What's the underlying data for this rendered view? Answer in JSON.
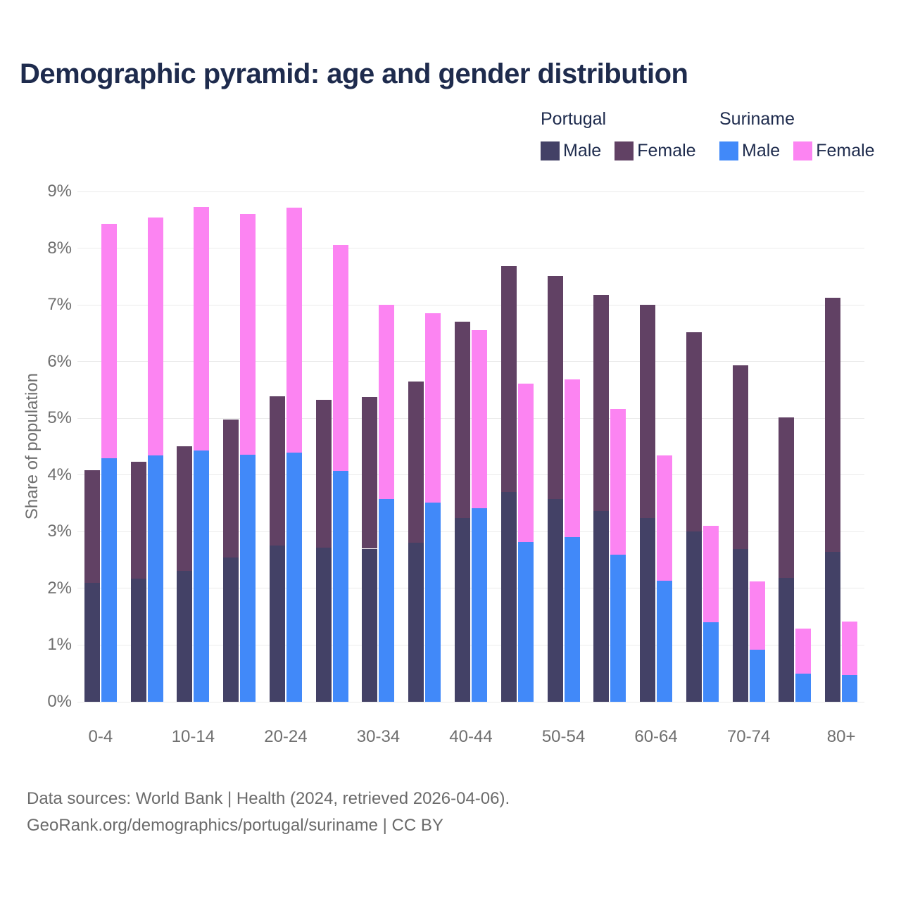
{
  "footer": {
    "line1": "Data sources: World Bank | Health (2024, retrieved 2026-04-06).",
    "line2": "GeoRank.org/demographics/portugal/suriname | CC BY"
  },
  "legend": {
    "groups": [
      {
        "header": "Portugal",
        "items": [
          {
            "label": "Male",
            "color": "#434166"
          },
          {
            "label": "Female",
            "color": "#614164"
          }
        ]
      },
      {
        "header": "Suriname",
        "items": [
          {
            "label": "Male",
            "color": "#4189f9"
          },
          {
            "label": "Female",
            "color": "#fc84f2"
          }
        ]
      }
    ]
  },
  "chart_data": {
    "type": "bar",
    "subtype": "paired-stacked-population-pyramid",
    "title": "Demographic pyramid: age and gender distribution",
    "xlabel": "",
    "ylabel": "Share of population",
    "ylim": [
      0,
      9
    ],
    "ytick_labels": [
      "0%",
      "1%",
      "2%",
      "3%",
      "4%",
      "5%",
      "6%",
      "7%",
      "8%",
      "9%"
    ],
    "grid": "horizontal",
    "legend_position": "top-right",
    "categories": [
      "0-4",
      "5-9",
      "10-14",
      "15-19",
      "20-24",
      "25-29",
      "30-34",
      "35-39",
      "40-44",
      "45-49",
      "50-54",
      "55-59",
      "60-64",
      "65-69",
      "70-74",
      "75-79",
      "80+"
    ],
    "xticks_shown": [
      "0-4",
      "10-14",
      "20-24",
      "30-34",
      "40-44",
      "50-54",
      "60-64",
      "70-74",
      "80+"
    ],
    "series": [
      {
        "name": "Portugal Male",
        "country": "Portugal",
        "gender": "Male",
        "stack": "portugal",
        "color": "#434166",
        "values": [
          2.1,
          2.17,
          2.31,
          2.54,
          2.75,
          2.72,
          2.7,
          2.8,
          3.24,
          3.7,
          3.57,
          3.37,
          3.24,
          3.0,
          2.69,
          2.18,
          2.64
        ]
      },
      {
        "name": "Portugal Female",
        "country": "Portugal",
        "gender": "Female",
        "stack": "portugal",
        "color": "#614164",
        "values": [
          1.99,
          2.06,
          2.2,
          2.44,
          2.64,
          2.6,
          2.68,
          2.85,
          3.46,
          3.99,
          3.94,
          3.8,
          3.76,
          3.52,
          3.24,
          2.83,
          4.48
        ]
      },
      {
        "name": "Suriname Male",
        "country": "Suriname",
        "gender": "Male",
        "stack": "suriname",
        "color": "#4189f9",
        "values": [
          4.29,
          4.35,
          4.43,
          4.36,
          4.4,
          4.07,
          3.57,
          3.51,
          3.41,
          2.82,
          2.9,
          2.59,
          2.13,
          1.4,
          0.92,
          0.5,
          0.47
        ]
      },
      {
        "name": "Suriname Female",
        "country": "Suriname",
        "gender": "Female",
        "stack": "suriname",
        "color": "#fc84f2",
        "values": [
          4.14,
          4.19,
          4.3,
          4.24,
          4.32,
          3.99,
          3.43,
          3.34,
          3.15,
          2.79,
          2.79,
          2.57,
          2.22,
          1.7,
          1.2,
          0.79,
          0.94
        ]
      }
    ]
  }
}
